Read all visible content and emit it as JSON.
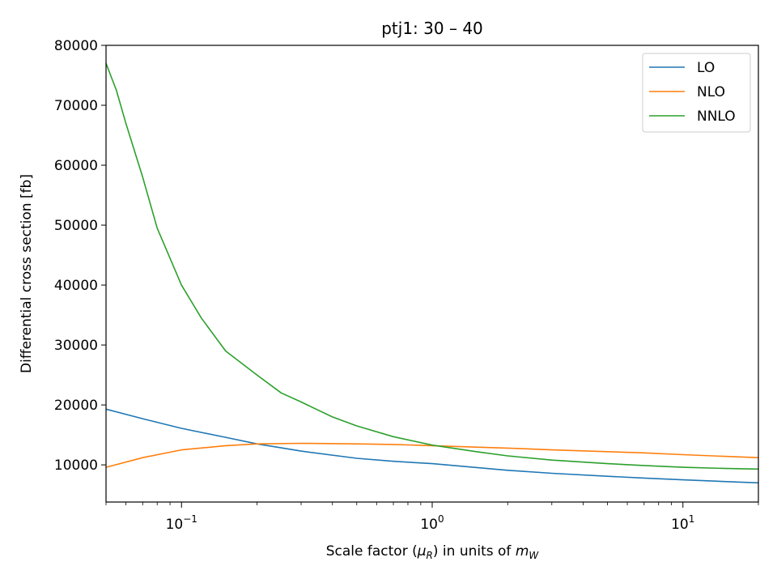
{
  "chart_data": {
    "type": "line",
    "title": "ptj1: 30 – 40",
    "xlabel": "Scale factor (μR) in units of mW",
    "xlabel_parts": {
      "prefix": "Scale factor (",
      "mu": "μ",
      "mu_sub": "R",
      "middle": ") in units of ",
      "m": "m",
      "m_sub": "W"
    },
    "ylabel": "Differential cross section [fb]",
    "xscale": "log",
    "xlim": [
      0.05,
      20
    ],
    "ylim": [
      3800,
      80000
    ],
    "grid": false,
    "legend_position": "upper right",
    "x_ticks": [
      {
        "value": 0.1,
        "base": "10",
        "exp": "−1"
      },
      {
        "value": 1,
        "base": "10",
        "exp": "0"
      },
      {
        "value": 10,
        "base": "10",
        "exp": "1"
      }
    ],
    "y_ticks": [
      10000,
      20000,
      30000,
      40000,
      50000,
      60000,
      70000,
      80000
    ],
    "y_tick_labels": [
      "10000",
      "20000",
      "30000",
      "40000",
      "50000",
      "60000",
      "70000",
      "80000"
    ],
    "series": [
      {
        "name": "LO",
        "color": "#1f77b4",
        "x": [
          0.05,
          0.07,
          0.1,
          0.15,
          0.2,
          0.3,
          0.5,
          0.7,
          1,
          2,
          3,
          5,
          7,
          10,
          15,
          20
        ],
        "y": [
          19300,
          17700,
          16100,
          14600,
          13500,
          12300,
          11100,
          10600,
          10200,
          9100,
          8600,
          8100,
          7800,
          7500,
          7200,
          7000
        ]
      },
      {
        "name": "NLO",
        "color": "#ff7f0e",
        "x": [
          0.05,
          0.07,
          0.1,
          0.15,
          0.2,
          0.3,
          0.5,
          0.7,
          1,
          2,
          3,
          5,
          7,
          10,
          15,
          20
        ],
        "y": [
          9600,
          11200,
          12500,
          13200,
          13500,
          13600,
          13500,
          13400,
          13200,
          12800,
          12500,
          12200,
          12000,
          11700,
          11400,
          11200
        ]
      },
      {
        "name": "NNLO",
        "color": "#2ca02c",
        "x": [
          0.05,
          0.055,
          0.06,
          0.07,
          0.08,
          0.1,
          0.12,
          0.15,
          0.2,
          0.25,
          0.3,
          0.4,
          0.5,
          0.7,
          1,
          1.5,
          2,
          3,
          5,
          7,
          10,
          15,
          20
        ],
        "y": [
          77000,
          72500,
          67000,
          58000,
          49500,
          40000,
          34500,
          29000,
          25000,
          22000,
          20500,
          18000,
          16500,
          14700,
          13300,
          12200,
          11500,
          10800,
          10200,
          9900,
          9600,
          9400,
          9300
        ]
      }
    ]
  }
}
